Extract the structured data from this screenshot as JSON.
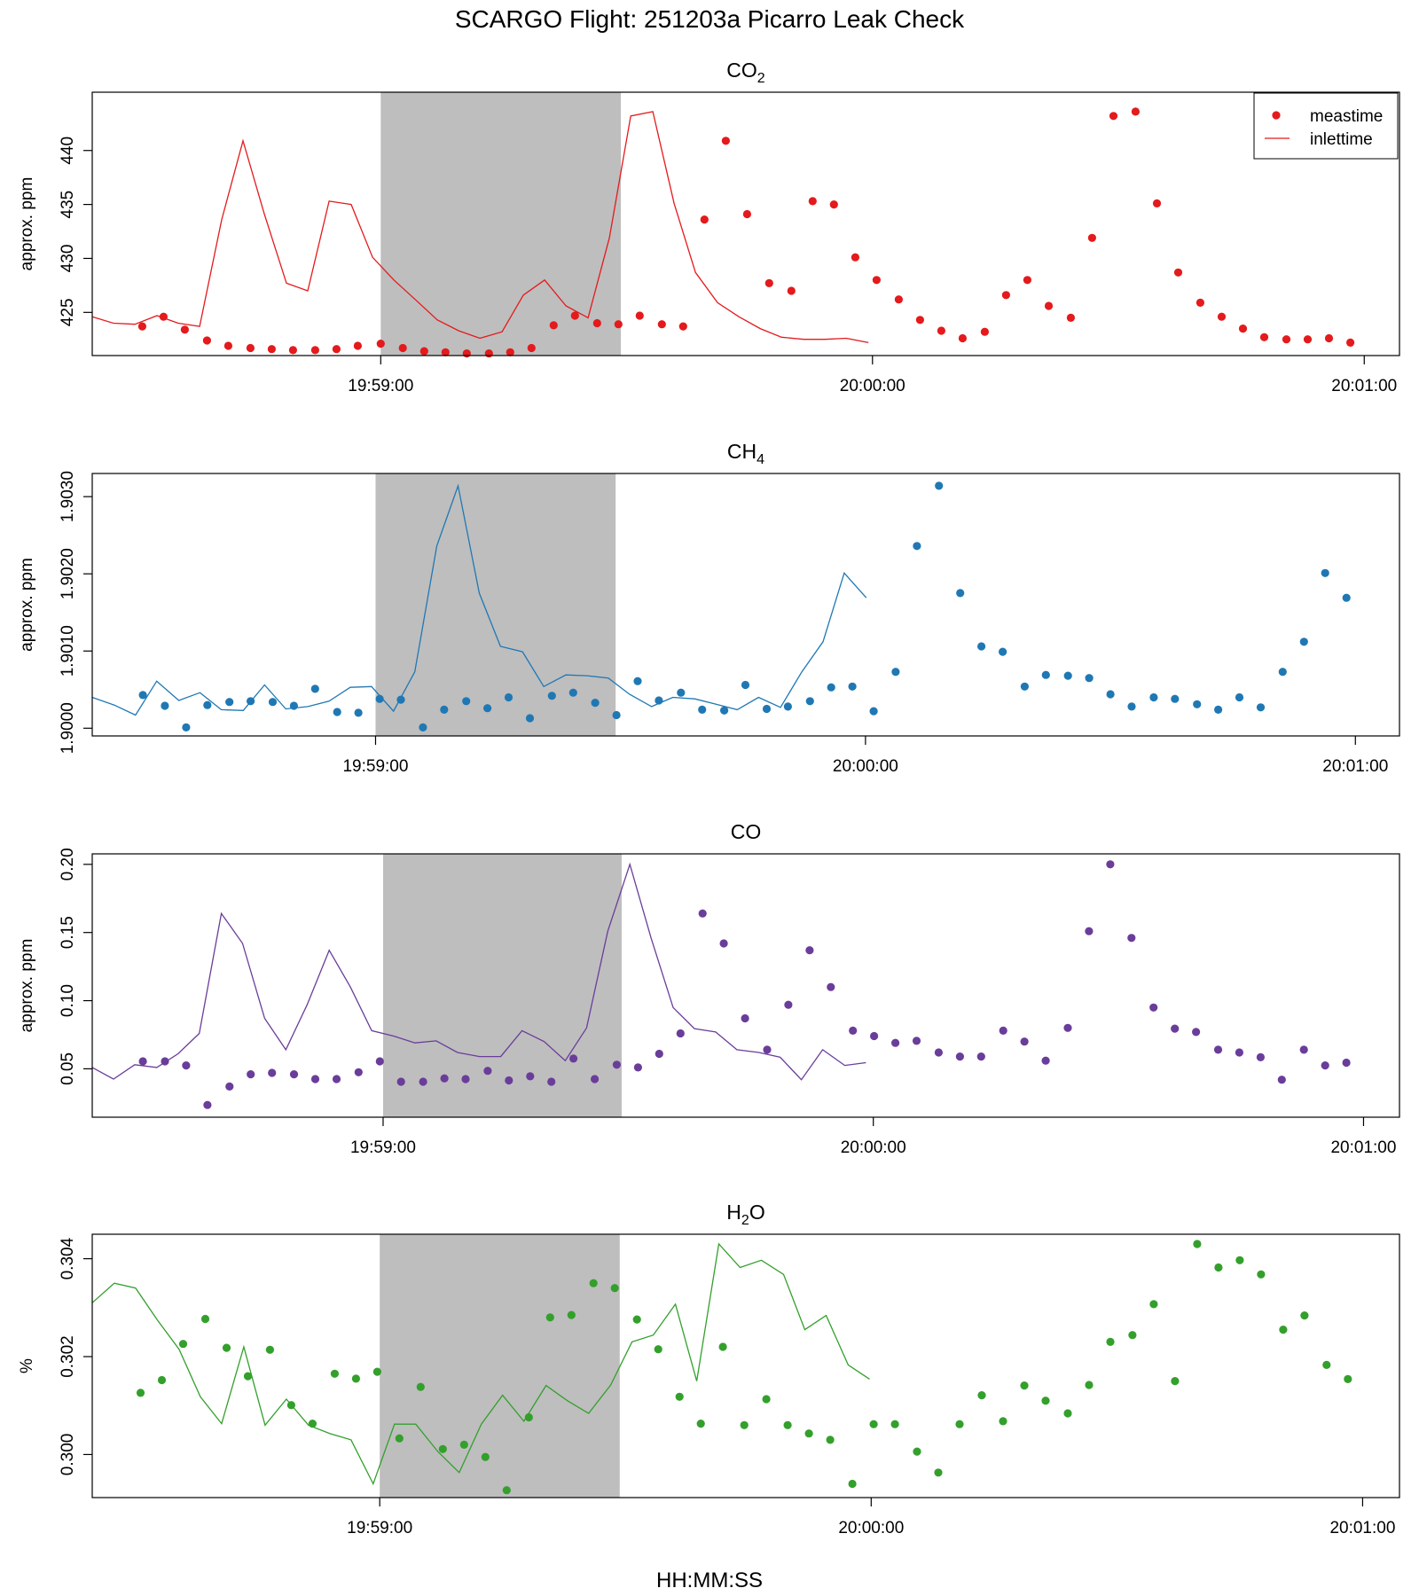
{
  "figure": {
    "title": "SCARGO Flight: 251203a  Picarro Leak Check",
    "xlabel": "HH:MM:SS"
  },
  "legend": {
    "entries": [
      {
        "label": "meastime",
        "kind": "point"
      },
      {
        "label": "inlettime",
        "kind": "line"
      }
    ],
    "placement": "top-right"
  },
  "chart_data": [
    {
      "type": "scatter",
      "id": "co2",
      "title": {
        "main": "CO",
        "sub": "2",
        "tail": ""
      },
      "ylabel": "approx. ppm",
      "color": "#e41a1c",
      "xlim": [
        -35.2,
        124.3
      ],
      "ylim": [
        421.0,
        445.4
      ],
      "yticks": [
        425,
        430,
        435,
        440
      ],
      "yticklabels": [
        "425",
        "430",
        "435",
        "440"
      ],
      "xticks": [
        0,
        60,
        120
      ],
      "xticklabels": [
        "19:59:00",
        "20:00:00",
        "20:01:00"
      ],
      "shade": [
        0,
        29.3
      ],
      "legend": true,
      "series": [
        {
          "name": "meastime",
          "kind": "points",
          "x": [
            -29.1,
            -26.5,
            -23.9,
            -21.2,
            -18.6,
            -15.9,
            -13.3,
            -10.7,
            -8.0,
            -5.4,
            -2.8,
            0.0,
            2.7,
            5.3,
            7.9,
            10.5,
            13.2,
            15.8,
            18.4,
            21.1,
            23.7,
            26.4,
            29.0,
            31.6,
            34.3,
            36.9,
            39.5,
            42.1,
            44.7,
            47.4,
            50.1,
            52.7,
            55.3,
            57.9,
            60.5,
            63.2,
            65.8,
            68.4,
            71.0,
            73.7,
            76.3,
            78.9,
            81.5,
            84.2,
            86.8,
            89.4,
            92.1,
            94.7,
            97.3,
            100.0,
            102.6,
            105.2,
            107.8,
            110.5,
            113.1,
            115.7,
            118.3
          ],
          "y": [
            423.7,
            424.6,
            423.4,
            422.4,
            421.9,
            421.7,
            421.6,
            421.5,
            421.5,
            421.6,
            421.9,
            422.1,
            421.7,
            421.4,
            421.3,
            421.2,
            421.2,
            421.3,
            421.7,
            423.8,
            424.7,
            424.0,
            423.9,
            424.7,
            423.9,
            423.7,
            433.6,
            440.9,
            434.1,
            427.7,
            427.0,
            435.3,
            435.0,
            430.1,
            428.0,
            426.2,
            424.3,
            423.3,
            422.6,
            423.2,
            426.6,
            428.0,
            425.6,
            424.5,
            431.9,
            443.2,
            443.6,
            435.1,
            428.7,
            425.9,
            424.6,
            423.5,
            422.7,
            422.5,
            422.5,
            422.6,
            422.2
          ]
        },
        {
          "name": "inlettime",
          "kind": "line",
          "x": [
            -35.2,
            -32.6,
            -30.0,
            -27.3,
            -24.7,
            -22.1,
            -19.4,
            -16.8,
            -14.2,
            -11.5,
            -8.9,
            -6.3,
            -3.6,
            -1.0,
            1.6,
            4.2,
            6.9,
            9.5,
            12.1,
            14.8,
            17.4,
            20.0,
            22.6,
            25.3,
            27.9,
            30.5,
            33.2,
            35.8,
            38.4,
            41.1,
            43.7,
            46.3,
            48.9,
            51.6,
            54.2,
            56.8,
            59.5
          ],
          "y": [
            424.6,
            424.0,
            423.9,
            424.7,
            424.0,
            423.7,
            433.6,
            440.9,
            434.1,
            427.7,
            427.0,
            435.3,
            435.0,
            430.1,
            428.0,
            426.2,
            424.3,
            423.3,
            422.6,
            423.2,
            426.6,
            428.0,
            425.6,
            424.5,
            431.9,
            443.2,
            443.6,
            435.1,
            428.7,
            425.9,
            424.6,
            423.5,
            422.7,
            422.5,
            422.5,
            422.6,
            422.2
          ]
        }
      ]
    },
    {
      "type": "scatter",
      "id": "ch4",
      "title": {
        "main": "CH",
        "sub": "4",
        "tail": ""
      },
      "ylabel": "approx. ppm",
      "color": "#1f78b4",
      "xlim": [
        -34.7,
        125.4
      ],
      "ylim": [
        1.8999,
        1.9033
      ],
      "yticks": [
        1.9,
        1.901,
        1.902,
        1.903
      ],
      "yticklabels": [
        "1.9000",
        "1.9010",
        "1.9020",
        "1.9030"
      ],
      "xticks": [
        0,
        60,
        120
      ],
      "xticklabels": [
        "19:59:00",
        "20:00:00",
        "20:01:00"
      ],
      "shade": [
        0,
        29.4
      ],
      "legend": false,
      "series": [
        {
          "name": "meastime",
          "kind": "points",
          "x": [
            -28.5,
            -25.8,
            -23.2,
            -20.6,
            -17.9,
            -15.3,
            -12.6,
            -10.0,
            -7.4,
            -4.7,
            -2.1,
            0.5,
            3.1,
            5.8,
            8.4,
            11.1,
            13.7,
            16.3,
            18.9,
            21.6,
            24.2,
            26.9,
            29.5,
            32.1,
            34.7,
            37.4,
            40.0,
            42.7,
            45.3,
            47.9,
            50.5,
            53.2,
            55.8,
            58.4,
            61.0,
            63.7,
            66.3,
            69.0,
            71.6,
            74.2,
            76.8,
            79.5,
            82.1,
            84.8,
            87.4,
            90.0,
            92.6,
            95.3,
            97.9,
            100.6,
            103.2,
            105.8,
            108.4,
            111.1,
            113.7,
            116.3,
            118.9
          ],
          "y": [
            1.90043,
            1.90029,
            1.90001,
            1.9003,
            1.90034,
            1.90035,
            1.90034,
            1.90029,
            1.90051,
            1.90021,
            1.9002,
            1.90038,
            1.90037,
            1.90001,
            1.90024,
            1.90035,
            1.90026,
            1.9004,
            1.90013,
            1.90042,
            1.90046,
            1.90033,
            1.90017,
            1.90061,
            1.90036,
            1.90046,
            1.90024,
            1.90023,
            1.90056,
            1.90025,
            1.90028,
            1.90035,
            1.90053,
            1.90054,
            1.90022,
            1.90073,
            1.90236,
            1.90314,
            1.90175,
            1.90106,
            1.90099,
            1.90054,
            1.90069,
            1.90068,
            1.90065,
            1.90044,
            1.90028,
            1.9004,
            1.90038,
            1.90031,
            1.90024,
            1.9004,
            1.90027,
            1.90073,
            1.90112,
            1.90201,
            1.90169
          ]
        },
        {
          "name": "inlettime",
          "kind": "line",
          "x": [
            -34.7,
            -32.0,
            -29.4,
            -26.8,
            -24.1,
            -21.5,
            -18.9,
            -16.2,
            -13.6,
            -11.0,
            -8.3,
            -5.7,
            -3.1,
            -0.5,
            2.2,
            4.8,
            7.5,
            10.1,
            12.7,
            15.3,
            18.0,
            20.6,
            23.3,
            25.9,
            28.5,
            31.1,
            33.8,
            36.4,
            39.1,
            41.7,
            44.3,
            46.9,
            49.6,
            52.2,
            54.8,
            57.4,
            60.1
          ],
          "y": [
            1.9004,
            1.9003,
            1.90017,
            1.90061,
            1.90036,
            1.90046,
            1.90024,
            1.90023,
            1.90056,
            1.90025,
            1.90028,
            1.90035,
            1.90053,
            1.90054,
            1.90022,
            1.90073,
            1.90236,
            1.90314,
            1.90175,
            1.90106,
            1.90099,
            1.90054,
            1.90069,
            1.90068,
            1.90065,
            1.90044,
            1.90028,
            1.9004,
            1.90038,
            1.90031,
            1.90024,
            1.9004,
            1.90027,
            1.90073,
            1.90112,
            1.90201,
            1.90169
          ]
        }
      ]
    },
    {
      "type": "scatter",
      "id": "co",
      "title": {
        "main": "CO",
        "sub": "",
        "tail": ""
      },
      "ylabel": "approx. ppm",
      "color": "#6a3d9a",
      "xlim": [
        -35.6,
        124.4
      ],
      "ylim": [
        0.0145,
        0.2077
      ],
      "yticks": [
        0.05,
        0.1,
        0.15,
        0.2
      ],
      "yticklabels": [
        "0.05",
        "0.10",
        "0.15",
        "0.20"
      ],
      "xticks": [
        0,
        60,
        120
      ],
      "xticklabels": [
        "19:59:00",
        "20:00:00",
        "20:01:00"
      ],
      "shade": [
        0,
        29.2
      ],
      "legend": false,
      "series": [
        {
          "name": "meastime",
          "kind": "points",
          "x": [
            -29.4,
            -26.7,
            -24.1,
            -21.5,
            -18.8,
            -16.2,
            -13.6,
            -10.9,
            -8.3,
            -5.7,
            -3.0,
            -0.4,
            2.2,
            4.9,
            7.5,
            10.1,
            12.8,
            15.4,
            18.0,
            20.6,
            23.3,
            25.9,
            28.6,
            31.2,
            33.8,
            36.4,
            39.1,
            41.7,
            44.3,
            47.0,
            49.6,
            52.2,
            54.8,
            57.5,
            60.1,
            62.7,
            65.3,
            68.0,
            70.6,
            73.2,
            75.9,
            78.5,
            81.1,
            83.8,
            86.4,
            89.0,
            91.6,
            94.3,
            96.9,
            99.5,
            102.2,
            104.8,
            107.4,
            110.0,
            112.7,
            115.3,
            117.9
          ],
          "y": [
            0.0555,
            0.0555,
            0.0525,
            0.0235,
            0.037,
            0.046,
            0.047,
            0.046,
            0.0425,
            0.0425,
            0.0475,
            0.0555,
            0.0405,
            0.0405,
            0.043,
            0.0425,
            0.0485,
            0.0415,
            0.0445,
            0.0405,
            0.0575,
            0.0425,
            0.053,
            0.051,
            0.061,
            0.076,
            0.164,
            0.142,
            0.087,
            0.064,
            0.097,
            0.137,
            0.11,
            0.078,
            0.074,
            0.069,
            0.0705,
            0.062,
            0.059,
            0.059,
            0.078,
            0.07,
            0.056,
            0.08,
            0.151,
            0.2,
            0.146,
            0.095,
            0.0795,
            0.077,
            0.064,
            0.062,
            0.0585,
            0.042,
            0.064,
            0.0525,
            0.0545
          ]
        },
        {
          "name": "inlettime",
          "kind": "line",
          "x": [
            -35.6,
            -33.0,
            -30.4,
            -27.7,
            -25.1,
            -22.5,
            -19.8,
            -17.2,
            -14.5,
            -11.9,
            -9.3,
            -6.6,
            -4.0,
            -1.4,
            1.3,
            3.9,
            6.5,
            9.1,
            11.8,
            14.4,
            17.0,
            19.7,
            22.3,
            24.9,
            27.5,
            30.2,
            32.8,
            35.5,
            38.1,
            40.7,
            43.3,
            46.0,
            48.6,
            51.2,
            53.8,
            56.5,
            59.1
          ],
          "y": [
            0.051,
            0.0425,
            0.053,
            0.051,
            0.061,
            0.076,
            0.164,
            0.142,
            0.087,
            0.064,
            0.097,
            0.137,
            0.11,
            0.078,
            0.074,
            0.069,
            0.0705,
            0.062,
            0.059,
            0.059,
            0.078,
            0.07,
            0.056,
            0.08,
            0.151,
            0.2,
            0.146,
            0.095,
            0.0795,
            0.077,
            0.064,
            0.062,
            0.0585,
            0.042,
            0.064,
            0.0525,
            0.0545
          ]
        }
      ]
    },
    {
      "type": "scatter",
      "id": "h2o",
      "title": {
        "main": "H",
        "sub": "2",
        "tail": "O"
      },
      "ylabel": "%",
      "color": "#33a02c",
      "xlim": [
        -35.1,
        124.5
      ],
      "ylim": [
        0.29912,
        0.3045
      ],
      "yticks": [
        0.3,
        0.302,
        0.304
      ],
      "yticklabels": [
        "0.300",
        "0.302",
        "0.304"
      ],
      "xticks": [
        0,
        60,
        120
      ],
      "xticklabels": [
        "19:59:00",
        "20:00:00",
        "20:01:00"
      ],
      "shade": [
        0,
        29.3
      ],
      "legend": false,
      "series": [
        {
          "name": "meastime",
          "kind": "points",
          "x": [
            -29.2,
            -26.6,
            -24.0,
            -21.3,
            -18.7,
            -16.1,
            -13.4,
            -10.8,
            -8.2,
            -5.5,
            -2.9,
            -0.3,
            2.4,
            5.0,
            7.7,
            10.3,
            12.9,
            15.5,
            18.2,
            20.8,
            23.4,
            26.1,
            28.7,
            31.4,
            34.0,
            36.6,
            39.2,
            41.9,
            44.5,
            47.2,
            49.8,
            52.4,
            55.0,
            57.7,
            60.3,
            62.9,
            65.6,
            68.2,
            70.8,
            73.5,
            76.1,
            78.7,
            81.3,
            84.0,
            86.6,
            89.2,
            91.9,
            94.5,
            97.1,
            99.8,
            102.4,
            105.0,
            107.6,
            110.3,
            112.9,
            115.6,
            118.2
          ],
          "y": [
            0.30126,
            0.30152,
            0.30226,
            0.30277,
            0.30218,
            0.3016,
            0.30214,
            0.30101,
            0.30063,
            0.30165,
            0.30155,
            0.30169,
            0.30033,
            0.30138,
            0.30011,
            0.3002,
            0.29995,
            0.29927,
            0.30076,
            0.3028,
            0.30285,
            0.3035,
            0.3034,
            0.30276,
            0.30215,
            0.30118,
            0.30063,
            0.3022,
            0.3006,
            0.30113,
            0.3006,
            0.30043,
            0.3003,
            0.2994,
            0.30062,
            0.30062,
            0.30006,
            0.29963,
            0.30062,
            0.30121,
            0.30068,
            0.30141,
            0.3011,
            0.30084,
            0.30142,
            0.3023,
            0.30244,
            0.30307,
            0.3015,
            0.3043,
            0.30382,
            0.30397,
            0.30368,
            0.30255,
            0.30284,
            0.30183,
            0.30154
          ]
        },
        {
          "name": "inlettime",
          "kind": "line",
          "x": [
            -35.1,
            -32.4,
            -29.8,
            -27.2,
            -24.5,
            -21.9,
            -19.3,
            -16.6,
            -14.0,
            -11.4,
            -8.7,
            -6.1,
            -3.5,
            -0.8,
            1.8,
            4.4,
            7.1,
            9.7,
            12.4,
            15.0,
            17.6,
            20.3,
            22.9,
            25.5,
            28.2,
            30.8,
            33.4,
            36.1,
            38.7,
            41.4,
            44.0,
            46.6,
            49.3,
            51.9,
            54.5,
            57.2,
            59.8
          ],
          "y": [
            0.3031,
            0.3035,
            0.3034,
            0.30276,
            0.30215,
            0.30118,
            0.30063,
            0.3022,
            0.3006,
            0.30113,
            0.3006,
            0.30043,
            0.3003,
            0.2994,
            0.30062,
            0.30062,
            0.30006,
            0.29963,
            0.30062,
            0.30121,
            0.30068,
            0.30141,
            0.3011,
            0.30084,
            0.30142,
            0.3023,
            0.30244,
            0.30307,
            0.3015,
            0.3043,
            0.30382,
            0.30397,
            0.30368,
            0.30255,
            0.30284,
            0.30183,
            0.30154
          ]
        }
      ]
    }
  ]
}
